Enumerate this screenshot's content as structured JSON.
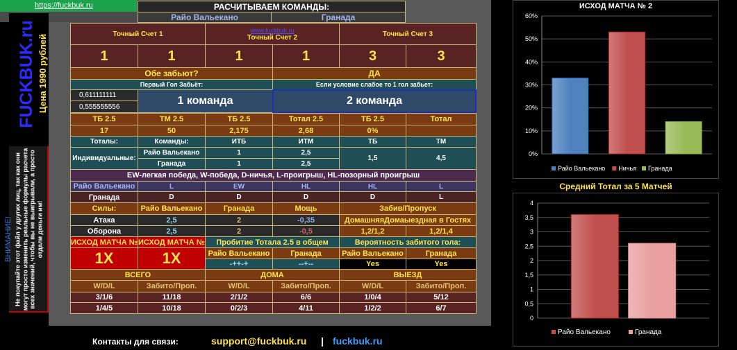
{
  "header": {
    "link": "https://fuckbuk.ru",
    "title": "РАСЧИТЫВАЕМ КОМАНДЫ:",
    "team1": "Райо Вальекано",
    "team2": "Гранада",
    "watermark": "www.fuckbuk.ru"
  },
  "left_panel": {
    "brand": "FUCKBUK.ru",
    "price": "Цена 1990 рублей",
    "warning_title": "ВНИМАНИЕ!",
    "warning_text": "Не покупайте этот файл у других лиц, так как они могут просто изменить реальные формулы расчета всех значений, чтобы вы не выигрывали, а просто отдали деньги им!"
  },
  "exact_score": {
    "label1": "Точный Счет 1",
    "label2": "Точный Счет 2",
    "label3": "Точный Счет 3",
    "values": [
      "1",
      "1",
      "1",
      "1",
      "3",
      "3"
    ]
  },
  "both_score": {
    "label": "Обе забьют?",
    "value": "ДА"
  },
  "first_goal": {
    "label": "Первый Гол Забьёт:",
    "value1": "0,611111111",
    "value2": "0,555555556",
    "team_label": "1 команда",
    "weak_label": "Если условие слабое то 1 гол забьет:",
    "weak_value": "2 команда"
  },
  "totals": {
    "headers": [
      "ТБ 2.5",
      "ТМ 2.5",
      "ТБ 2.5",
      "Тотал 2.5",
      "ТБ 2.5",
      "Тотал"
    ],
    "values": [
      "17",
      "50",
      "2,175",
      "2,68",
      "0%",
      ""
    ]
  },
  "individual": {
    "headers": [
      "Тоталы:",
      "Команды:",
      "ИТБ",
      "ИТМ",
      "ТБ",
      "ТМ"
    ],
    "label": "Индивидуальные:",
    "team1": "Райо Вальекано",
    "team2": "Гранада",
    "itb1": "1",
    "itm1": "2,5",
    "itb2": "1",
    "itm2": "2,5",
    "tb": "1,5",
    "tm": "4,5"
  },
  "form": {
    "legend": "EW-легкая победа,  W-победа,  D-ничья,  L-проигрыш,  HL-позорный проигрыш",
    "team1": "Райо Вальекано",
    "team1_results": [
      "L",
      "EW",
      "HL",
      "HL",
      "L"
    ],
    "team2": "Гранада",
    "team2_results": [
      "D",
      "D",
      "D",
      "D",
      "L"
    ]
  },
  "strength": {
    "label": "Силы:",
    "team1": "Райо Вальекано",
    "team2": "Гранада",
    "power": "Мощь",
    "goals_header": "Забив/Пропуск",
    "attack_label": "Атака",
    "attack": [
      "2,5",
      "2",
      "-0,35"
    ],
    "defense_label": "Оборона",
    "defense": [
      "2,5",
      "2",
      "-0,5"
    ],
    "home_label": "Домашняя",
    "away_label": "Домаыездная в Гостях",
    "home_value": "1,2/1,2",
    "away_value": "1,2/1,4"
  },
  "outcome": {
    "label1": "ИСХОД МАТЧА №",
    "label2": "ИСХОД МАТЧА №",
    "value1": "1Х",
    "value2": "1Х",
    "breakthrough_label": "Пробитие Тотала 2.5 в общем",
    "probability_label": "Вероятность забитого гола:",
    "team1": "Райо Вальекано",
    "team2": "Гранада",
    "break1": "-++-+",
    "break2": "--+--",
    "prob1": "Yes",
    "prob2": "Yes"
  },
  "stats": {
    "all": "ВСЕГО",
    "home": "ДОМА",
    "away": "ВЫЕЗД",
    "wdl": "W/D/L",
    "gp": "Забито/Проп.",
    "row1": [
      "3/1/6",
      "11/18",
      "2/1/2",
      "6/6",
      "1/0/4",
      "5/12"
    ],
    "row2": [
      "1/4/5",
      "10/18",
      "0/2/3",
      "4/11",
      "1/2/2",
      "6/7"
    ]
  },
  "footer": {
    "contacts": "Контакты для связи:",
    "email": "support@fuckbuk.ru",
    "separator": "|",
    "site": "fuckbuk.ru"
  },
  "chart_data": [
    {
      "type": "bar",
      "title": "ИСХОД МАТЧА № 2",
      "categories": [
        "Райо Вальекано",
        "Ничья",
        "Гранада"
      ],
      "values": [
        33,
        53,
        14
      ],
      "colors": [
        "#4f81bd",
        "#c0504d",
        "#9bbb59"
      ],
      "ylim": [
        0,
        60
      ],
      "ticks": [
        "0%",
        "10%",
        "20%",
        "30%",
        "40%",
        "50%",
        "60%"
      ],
      "grid": true,
      "legend": "bottom"
    },
    {
      "type": "bar",
      "title": "Средний Тотал за 5 Матчей",
      "categories": [
        "Райо Вальекано",
        "Гранада"
      ],
      "values": [
        3.6,
        2.6
      ],
      "colors": [
        "#c0504d",
        "#e8a0a0"
      ],
      "ylim": [
        0,
        4
      ],
      "ticks": [
        "0",
        "0,5",
        "1",
        "1,5",
        "2",
        "2,5",
        "3",
        "3,5",
        "4"
      ],
      "grid": true,
      "legend": "bottom"
    }
  ]
}
